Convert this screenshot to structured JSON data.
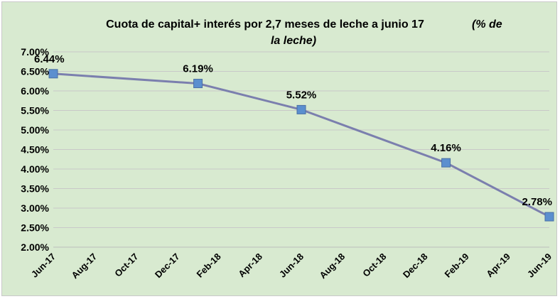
{
  "chart_data": {
    "type": "line",
    "title_main": "Cuota de capital+ interés por 2,7 meses de leche a junio 17",
    "title_suffix_line1": "(% de",
    "title_suffix_line2": "la leche)",
    "x_tick_labels": [
      "Jun-17",
      "Aug-17",
      "Oct-17",
      "Dec-17",
      "Feb-18",
      "Apr-18",
      "Jun-18",
      "Aug-18",
      "Oct-18",
      "Dec-18",
      "Feb-19",
      "Apr-19",
      "Jun-19"
    ],
    "y_tick_labels": [
      "2.00%",
      "2.50%",
      "3.00%",
      "3.50%",
      "4.00%",
      "4.50%",
      "5.00%",
      "5.50%",
      "6.00%",
      "6.50%",
      "7.00%"
    ],
    "ylim": [
      2.0,
      7.0
    ],
    "x_range_months": [
      0,
      24
    ],
    "series": [
      {
        "name": "Cuota",
        "color": "#7b7fae",
        "marker_color": "#5b8fcf",
        "points": [
          {
            "x_month": 0,
            "value": 6.44,
            "label": "6.44%"
          },
          {
            "x_month": 7,
            "value": 6.19,
            "label": "6.19%"
          },
          {
            "x_month": 12,
            "value": 5.52,
            "label": "5.52%"
          },
          {
            "x_month": 19,
            "value": 4.16,
            "label": "4.16%"
          },
          {
            "x_month": 24,
            "value": 2.78,
            "label": "2.78%"
          }
        ]
      }
    ],
    "grid": true,
    "gridline_color": "#c8c8c8"
  }
}
